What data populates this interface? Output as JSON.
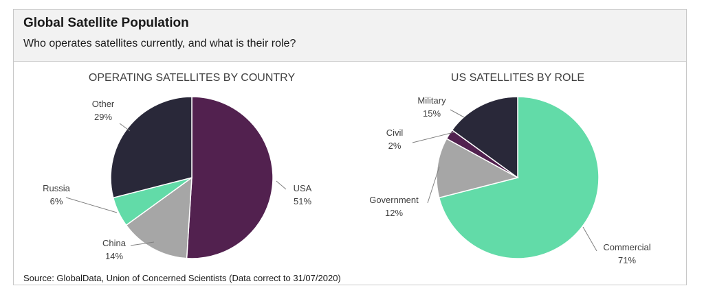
{
  "header": {
    "title": "Global Satellite Population",
    "subtitle": "Who operates satellites currently, and what is their role?"
  },
  "source": "Source: GlobalData, Union of Concerned Scientists (Data correct to 31/07/2020)",
  "chart_data": [
    {
      "type": "pie",
      "title": "OPERATING SATELLITES BY COUNTRY",
      "slices": [
        {
          "label": "USA",
          "pct_label": "51%",
          "value": 51,
          "color": "#52214f"
        },
        {
          "label": "China",
          "pct_label": "14%",
          "value": 14,
          "color": "#a6a6a6"
        },
        {
          "label": "Russia",
          "pct_label": "6%",
          "value": 6,
          "color": "#62dba8"
        },
        {
          "label": "Other",
          "pct_label": "29%",
          "value": 29,
          "color": "#292839"
        }
      ]
    },
    {
      "type": "pie",
      "title": "US SATELLITES BY ROLE",
      "slices": [
        {
          "label": "Commercial",
          "pct_label": "71%",
          "value": 71,
          "color": "#62dba8"
        },
        {
          "label": "Government",
          "pct_label": "12%",
          "value": 12,
          "color": "#a6a6a6"
        },
        {
          "label": "Civil",
          "pct_label": "2%",
          "value": 2,
          "color": "#52214f"
        },
        {
          "label": "Military",
          "pct_label": "15%",
          "value": 15,
          "color": "#292839"
        }
      ]
    }
  ]
}
